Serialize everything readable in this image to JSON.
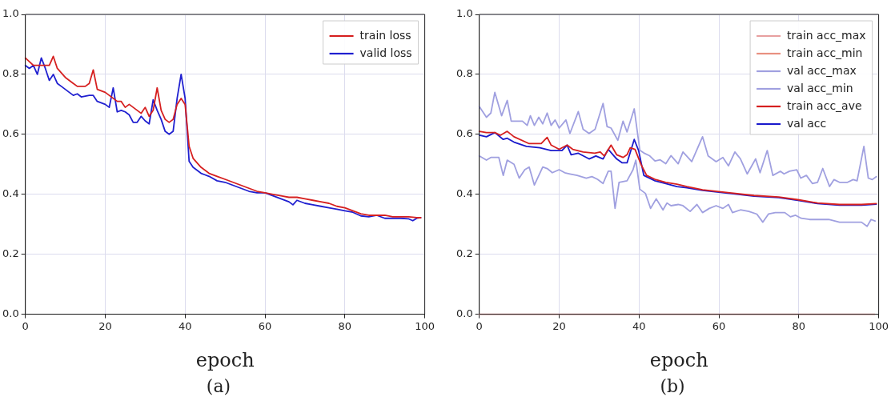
{
  "chart_data": [
    {
      "type": "line",
      "xlabel": "epoch",
      "annotations": [
        "(a)"
      ],
      "xlim": [
        0,
        100
      ],
      "ylim": [
        0,
        1
      ],
      "xticks": [
        0,
        20,
        40,
        60,
        80,
        100
      ],
      "yticks": [
        {
          "value": 0,
          "label": "0.0"
        },
        {
          "value": 0.2,
          "label": "0.2"
        },
        {
          "value": 0.4,
          "label": "0.4"
        },
        {
          "value": 0.6,
          "label": "0.6"
        },
        {
          "value": 0.8,
          "label": "0.8"
        },
        {
          "value": 1,
          "label": "1.0"
        }
      ],
      "grid": true,
      "legend": "top right",
      "line_style": "solid",
      "marker": "none",
      "series": [
        {
          "name": "train loss",
          "color": "#d62020",
          "x": [
            0,
            2,
            4,
            6,
            7,
            8,
            10,
            12,
            13,
            15,
            16,
            17,
            18,
            20,
            22,
            23,
            24,
            25,
            26,
            28,
            29,
            30,
            31,
            32,
            33,
            34,
            35,
            36,
            37,
            38,
            39,
            40,
            41,
            42,
            44,
            46,
            48,
            50,
            52,
            54,
            56,
            58,
            60,
            62,
            64,
            66,
            68,
            70,
            72,
            74,
            76,
            78,
            80,
            82,
            84,
            86,
            88,
            90,
            92,
            94,
            96,
            98,
            99
          ],
          "values": [
            0.855,
            0.83,
            0.83,
            0.83,
            0.86,
            0.82,
            0.79,
            0.77,
            0.76,
            0.76,
            0.77,
            0.815,
            0.75,
            0.74,
            0.72,
            0.71,
            0.71,
            0.69,
            0.7,
            0.68,
            0.67,
            0.69,
            0.66,
            0.68,
            0.755,
            0.68,
            0.65,
            0.64,
            0.65,
            0.7,
            0.72,
            0.7,
            0.56,
            0.52,
            0.49,
            0.47,
            0.46,
            0.45,
            0.44,
            0.43,
            0.42,
            0.41,
            0.405,
            0.4,
            0.395,
            0.39,
            0.39,
            0.385,
            0.38,
            0.375,
            0.37,
            0.36,
            0.355,
            0.345,
            0.335,
            0.33,
            0.33,
            0.33,
            0.325,
            0.325,
            0.325,
            0.322,
            0.322
          ]
        },
        {
          "name": "valid loss",
          "color": "#2020d0",
          "x": [
            0,
            1,
            2,
            3,
            4,
            5,
            6,
            7,
            8,
            9,
            10,
            12,
            13,
            14,
            16,
            17,
            18,
            20,
            21,
            22,
            23,
            24,
            25,
            26,
            27,
            28,
            29,
            30,
            31,
            32,
            33,
            34,
            35,
            36,
            37,
            38,
            39,
            40,
            41,
            42,
            44,
            46,
            48,
            50,
            52,
            54,
            56,
            58,
            60,
            62,
            64,
            66,
            67,
            68,
            70,
            72,
            74,
            76,
            78,
            80,
            82,
            84,
            86,
            88,
            90,
            92,
            94,
            96,
            97,
            98,
            99
          ],
          "values": [
            0.83,
            0.82,
            0.83,
            0.8,
            0.855,
            0.82,
            0.78,
            0.8,
            0.77,
            0.76,
            0.75,
            0.73,
            0.735,
            0.725,
            0.73,
            0.73,
            0.71,
            0.7,
            0.69,
            0.755,
            0.675,
            0.68,
            0.675,
            0.665,
            0.64,
            0.64,
            0.66,
            0.645,
            0.635,
            0.715,
            0.68,
            0.65,
            0.61,
            0.6,
            0.61,
            0.72,
            0.8,
            0.72,
            0.51,
            0.49,
            0.47,
            0.46,
            0.445,
            0.44,
            0.43,
            0.42,
            0.41,
            0.405,
            0.405,
            0.395,
            0.385,
            0.375,
            0.365,
            0.38,
            0.37,
            0.365,
            0.36,
            0.355,
            0.35,
            0.345,
            0.34,
            0.328,
            0.325,
            0.33,
            0.32,
            0.32,
            0.32,
            0.318,
            0.312,
            0.32,
            0.322
          ]
        }
      ]
    },
    {
      "type": "line",
      "xlabel": "epoch",
      "annotations": [
        "(b)"
      ],
      "xlim": [
        0,
        100
      ],
      "ylim": [
        0,
        1
      ],
      "xticks": [
        0,
        20,
        40,
        60,
        80,
        100
      ],
      "yticks": [
        {
          "value": 0,
          "label": "0.0"
        },
        {
          "value": 0.2,
          "label": "0.2"
        },
        {
          "value": 0.4,
          "label": "0.4"
        },
        {
          "value": 0.6,
          "label": "0.6"
        },
        {
          "value": 0.8,
          "label": "0.8"
        },
        {
          "value": 1,
          "label": "1.0"
        }
      ],
      "grid": true,
      "legend": "top right",
      "line_style": "solid",
      "marker": "none",
      "series": [
        {
          "name": "train acc_max",
          "color": "#e8a0a0",
          "x": [
            0,
            99
          ],
          "values": [
            0,
            0
          ]
        },
        {
          "name": "train acc_min",
          "color": "#e89080"
        },
        {
          "name": "val acc_max",
          "color": "#a0a0e0",
          "x": [
            0,
            1.8,
            2.9,
            3.9,
            5.6,
            7,
            8,
            10.8,
            12,
            12.8,
            13.8,
            14.9,
            15.9,
            17,
            18,
            19,
            20,
            21.7,
            22.7,
            24.8,
            26,
            27.5,
            29,
            31,
            32,
            33,
            34.7,
            36,
            37,
            38.8,
            40.2,
            41.2,
            42.6,
            44,
            45.3,
            46.7,
            48,
            49.8,
            51,
            53.2,
            55.9,
            57.3,
            59.3,
            61,
            62.4,
            64,
            65.4,
            67.1,
            69.2,
            70.3,
            72.1,
            73.5,
            75.4,
            76.3,
            77.7,
            79.5,
            80.5,
            81.9,
            83.4,
            84.7,
            86,
            87.7,
            88.8,
            90.2,
            92.2,
            93.6,
            94.6,
            96.3,
            97.4,
            98.4,
            99.4
          ],
          "values": [
            0.693,
            0.657,
            0.671,
            0.74,
            0.662,
            0.713,
            0.644,
            0.644,
            0.63,
            0.662,
            0.63,
            0.657,
            0.635,
            0.671,
            0.63,
            0.648,
            0.621,
            0.648,
            0.603,
            0.676,
            0.617,
            0.603,
            0.617,
            0.703,
            0.626,
            0.621,
            0.58,
            0.644,
            0.608,
            0.685,
            0.547,
            0.538,
            0.529,
            0.511,
            0.515,
            0.502,
            0.529,
            0.502,
            0.541,
            0.509,
            0.592,
            0.528,
            0.509,
            0.523,
            0.495,
            0.541,
            0.518,
            0.468,
            0.518,
            0.472,
            0.546,
            0.463,
            0.477,
            0.468,
            0.477,
            0.482,
            0.454,
            0.463,
            0.436,
            0.44,
            0.486,
            0.426,
            0.449,
            0.44,
            0.44,
            0.449,
            0.445,
            0.56,
            0.454,
            0.449,
            0.459
          ]
        },
        {
          "name": "val acc_min",
          "color": "#a0a0e0",
          "x": [
            0,
            1.8,
            2.9,
            4.9,
            6,
            7,
            8.7,
            10,
            11.4,
            12.5,
            13.8,
            15.9,
            17,
            18.3,
            20,
            21.4,
            22.7,
            24.5,
            26.8,
            28.2,
            29.6,
            31,
            32.3,
            33,
            34,
            35,
            37,
            38.5,
            39.2,
            40.2,
            41.6,
            42.9,
            44.3,
            46,
            47,
            48,
            49.8,
            51,
            52.8,
            54.5,
            55.9,
            57.6,
            59.3,
            61,
            62.4,
            63.4,
            65.4,
            67.5,
            69.5,
            71,
            72.4,
            74.1,
            76.5,
            77.9,
            79.2,
            80.6,
            82.7,
            84.7,
            87.5,
            90.2,
            93.6,
            95.7,
            97.1,
            98.1,
            99.1
          ],
          "values": [
            0.528,
            0.514,
            0.523,
            0.523,
            0.463,
            0.514,
            0.5,
            0.454,
            0.482,
            0.491,
            0.431,
            0.491,
            0.486,
            0.472,
            0.482,
            0.472,
            0.468,
            0.463,
            0.454,
            0.459,
            0.45,
            0.436,
            0.477,
            0.477,
            0.353,
            0.44,
            0.445,
            0.482,
            0.514,
            0.417,
            0.403,
            0.353,
            0.385,
            0.348,
            0.371,
            0.362,
            0.366,
            0.362,
            0.343,
            0.366,
            0.339,
            0.353,
            0.362,
            0.353,
            0.366,
            0.339,
            0.348,
            0.343,
            0.334,
            0.307,
            0.334,
            0.339,
            0.339,
            0.325,
            0.33,
            0.32,
            0.316,
            0.316,
            0.316,
            0.307,
            0.307,
            0.307,
            0.293,
            0.316,
            0.311
          ]
        },
        {
          "name": "train acc_ave",
          "color": "#d62020",
          "x": [
            0,
            1.8,
            3.9,
            5.3,
            7,
            8.7,
            12.5,
            15.5,
            17,
            18,
            20,
            22,
            23.4,
            26,
            28.9,
            30.3,
            31.3,
            33,
            34.4,
            36,
            37,
            37.8,
            39,
            40.5,
            41.9,
            44,
            46.7,
            49.5,
            52,
            55.9,
            62.7,
            68.8,
            75,
            79.8,
            84.7,
            90.2,
            95.7,
            99.4
          ],
          "values": [
            0.61,
            0.606,
            0.606,
            0.597,
            0.61,
            0.592,
            0.569,
            0.569,
            0.59,
            0.564,
            0.55,
            0.564,
            0.55,
            0.541,
            0.537,
            0.541,
            0.528,
            0.564,
            0.532,
            0.523,
            0.532,
            0.555,
            0.55,
            0.5,
            0.463,
            0.45,
            0.44,
            0.434,
            0.426,
            0.415,
            0.405,
            0.396,
            0.391,
            0.382,
            0.371,
            0.366,
            0.366,
            0.369
          ]
        },
        {
          "name": "val acc",
          "color": "#1a1acc",
          "x": [
            0,
            1.8,
            3.9,
            6,
            7,
            8.7,
            11.8,
            15.2,
            18,
            20.7,
            22,
            23,
            24.8,
            27.5,
            29.2,
            31,
            32.3,
            34.4,
            35.8,
            37,
            38.8,
            39.9,
            41.2,
            44,
            46.7,
            49.5,
            52,
            55.9,
            62.7,
            68.8,
            75,
            79.8,
            84.7,
            90.2,
            95.7,
            99.4
          ],
          "values": [
            0.597,
            0.592,
            0.606,
            0.583,
            0.587,
            0.574,
            0.56,
            0.555,
            0.546,
            0.546,
            0.564,
            0.532,
            0.537,
            0.518,
            0.528,
            0.518,
            0.55,
            0.518,
            0.505,
            0.505,
            0.583,
            0.546,
            0.463,
            0.445,
            0.436,
            0.426,
            0.422,
            0.413,
            0.403,
            0.394,
            0.389,
            0.38,
            0.369,
            0.364,
            0.364,
            0.367
          ]
        }
      ]
    }
  ]
}
